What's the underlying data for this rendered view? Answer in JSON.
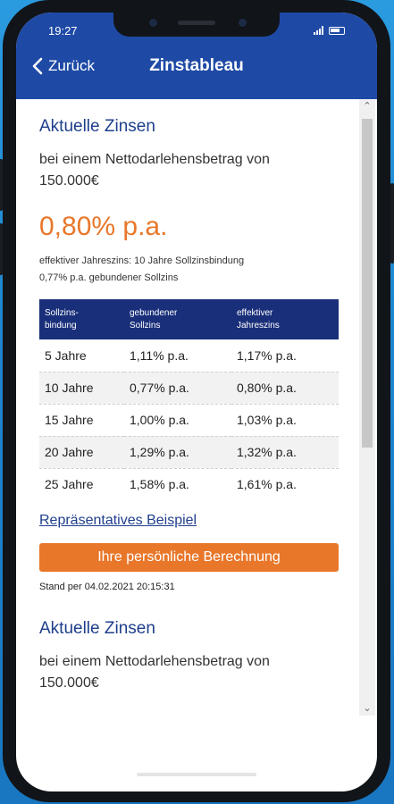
{
  "status_bar": {
    "time": "19:27"
  },
  "nav": {
    "back_label": "Zurück",
    "title": "Zinstableau"
  },
  "section1": {
    "heading": "Aktuelle Zinsen",
    "subtitle_line1": "bei einem Nettodarlehensbetrag von",
    "subtitle_line2": "150.000€",
    "rate": "0,80% p.a.",
    "note_line1": "effektiver Jahreszins: 10 Jahre Sollzinsbindung",
    "note_line2": "0,77% p.a. gebundener Sollzins",
    "table": {
      "headers": [
        {
          "l1": "Sollzins-",
          "l2": "bindung"
        },
        {
          "l1": "gebundener",
          "l2": "Sollzins"
        },
        {
          "l1": "effektiver",
          "l2": "Jahreszins"
        }
      ],
      "rows": [
        [
          "5 Jahre",
          "1,11% p.a.",
          "1,17% p.a."
        ],
        [
          "10 Jahre",
          "0,77% p.a.",
          "0,80% p.a."
        ],
        [
          "15 Jahre",
          "1,00% p.a.",
          "1,03% p.a."
        ],
        [
          "20 Jahre",
          "1,29% p.a.",
          "1,32% p.a."
        ],
        [
          "25 Jahre",
          "1,58% p.a.",
          "1,61% p.a."
        ]
      ]
    },
    "example_link": "Repräsentatives Beispiel",
    "cta_label": "Ihre persönliche Berechnung",
    "stand": "Stand per 04.02.2021 20:15:31"
  },
  "section2": {
    "heading": "Aktuelle Zinsen",
    "subtitle_line1": "bei einem Nettodarlehensbetrag von",
    "subtitle_line2": "150.000€"
  },
  "colors": {
    "header_blue": "#1e4aa6",
    "table_header": "#1a2f7a",
    "accent_orange": "#e8772a",
    "heading_blue": "#1f3f8c"
  },
  "icons": {
    "back": "chevron-left-icon",
    "signal": "signal-icon",
    "battery": "battery-icon"
  }
}
